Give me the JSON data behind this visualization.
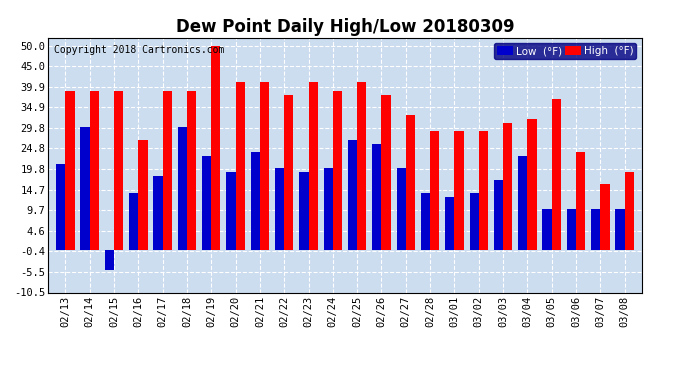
{
  "title": "Dew Point Daily High/Low 20180309",
  "copyright": "Copyright 2018 Cartronics.com",
  "dates": [
    "02/13",
    "02/14",
    "02/15",
    "02/16",
    "02/17",
    "02/18",
    "02/19",
    "02/20",
    "02/21",
    "02/22",
    "02/23",
    "02/24",
    "02/25",
    "02/26",
    "02/27",
    "02/28",
    "03/01",
    "03/02",
    "03/03",
    "03/04",
    "03/05",
    "03/06",
    "03/07",
    "03/08"
  ],
  "high": [
    39.0,
    39.0,
    39.0,
    27.0,
    39.0,
    39.0,
    50.0,
    41.0,
    41.0,
    38.0,
    41.0,
    39.0,
    41.0,
    38.0,
    33.0,
    29.0,
    29.0,
    29.0,
    31.0,
    32.0,
    37.0,
    24.0,
    16.0,
    19.0
  ],
  "low": [
    21.0,
    30.0,
    -5.0,
    14.0,
    18.0,
    30.0,
    23.0,
    19.0,
    24.0,
    20.0,
    19.0,
    20.0,
    27.0,
    26.0,
    20.0,
    14.0,
    13.0,
    14.0,
    17.0,
    23.0,
    10.0,
    10.0,
    10.0,
    10.0
  ],
  "ylim": [
    -10.5,
    52.0
  ],
  "yticks": [
    -10.5,
    -5.5,
    -0.4,
    4.6,
    9.7,
    14.7,
    19.8,
    24.8,
    29.8,
    34.9,
    39.9,
    45.0,
    50.0
  ],
  "high_color": "#FF0000",
  "low_color": "#0000CC",
  "bg_color": "#FFFFFF",
  "plot_bg_color": "#CCDDF0",
  "grid_color": "#FFFFFF",
  "bar_width": 0.38,
  "title_fontsize": 12,
  "tick_fontsize": 7.5,
  "copyright_fontsize": 7.0
}
